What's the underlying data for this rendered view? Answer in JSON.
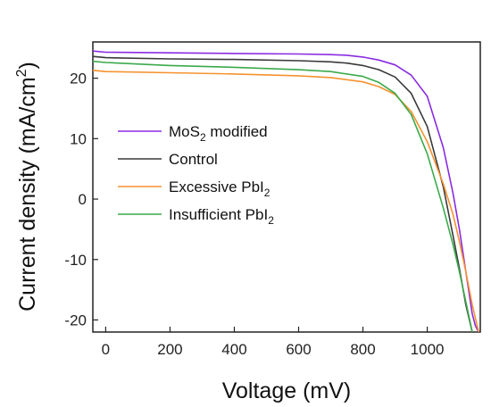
{
  "chart_data": {
    "type": "line",
    "title": "",
    "xlabel": "Voltage (mV)",
    "ylabel_main": "Current density (mA/cm",
    "ylabel_sup": "2",
    "ylabel_close": ")",
    "xlim": [
      -40,
      1165
    ],
    "ylim": [
      -22,
      26
    ],
    "xticks": [
      0,
      200,
      400,
      600,
      800,
      1000
    ],
    "yticks": [
      -20,
      -10,
      0,
      10,
      20
    ],
    "legend_position": "center-left",
    "grid": false,
    "series": [
      {
        "name_main": "MoS",
        "name_sub": "2",
        "name_rest": " modified",
        "color": "#8a2be2",
        "x": [
          -40,
          0,
          200,
          400,
          600,
          700,
          750,
          800,
          850,
          900,
          950,
          1000,
          1050,
          1080,
          1100,
          1120,
          1140,
          1150,
          1160
        ],
        "y": [
          24.5,
          24.3,
          24.2,
          24.1,
          24.0,
          23.9,
          23.8,
          23.5,
          23.0,
          22.2,
          20.5,
          17.0,
          8.5,
          1.0,
          -5.0,
          -12.0,
          -19.0,
          -21.0,
          -22.0
        ]
      },
      {
        "name_main": "Control",
        "name_sub": "",
        "name_rest": "",
        "color": "#3a3a3a",
        "x": [
          -40,
          0,
          200,
          400,
          600,
          700,
          750,
          800,
          850,
          900,
          950,
          1000,
          1050,
          1080,
          1100,
          1120,
          1140
        ],
        "y": [
          23.6,
          23.4,
          23.2,
          23.1,
          22.9,
          22.7,
          22.5,
          22.1,
          21.4,
          20.2,
          17.5,
          12.0,
          2.0,
          -6.0,
          -11.5,
          -17.5,
          -22.0
        ]
      },
      {
        "name_main": "Excessive PbI",
        "name_sub": "2",
        "name_rest": "",
        "color": "#f5922f",
        "x": [
          -40,
          0,
          200,
          400,
          600,
          700,
          800,
          850,
          900,
          950,
          1000,
          1050,
          1080,
          1100,
          1120,
          1140,
          1160
        ],
        "y": [
          21.3,
          21.1,
          20.9,
          20.7,
          20.4,
          20.1,
          19.4,
          18.6,
          17.3,
          14.5,
          9.5,
          2.5,
          -2.5,
          -7.0,
          -12.0,
          -17.5,
          -22.0
        ]
      },
      {
        "name_main": "Insufficient PbI",
        "name_sub": "2",
        "name_rest": "",
        "color": "#3aaa4a",
        "x": [
          -40,
          0,
          200,
          400,
          600,
          700,
          800,
          850,
          900,
          950,
          1000,
          1050,
          1080,
          1100,
          1120,
          1140
        ],
        "y": [
          22.8,
          22.6,
          22.1,
          21.8,
          21.4,
          21.1,
          20.3,
          19.3,
          17.5,
          14.0,
          7.5,
          -1.5,
          -7.5,
          -12.0,
          -17.0,
          -22.0
        ]
      }
    ]
  }
}
